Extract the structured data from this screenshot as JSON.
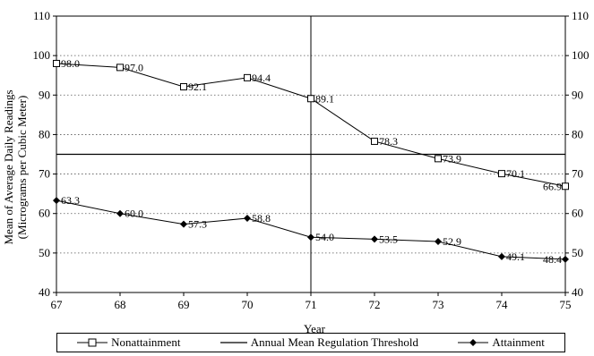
{
  "chart_data": {
    "type": "line",
    "x": [
      "67",
      "68",
      "69",
      "70",
      "71",
      "72",
      "73",
      "74",
      "75"
    ],
    "xlabel": "Year",
    "ylabel": "Mean of Average Daily Readings",
    "ylabel_units": "(Micrograms per Cubic Meter)",
    "ylim": [
      40,
      110
    ],
    "yticks": [
      "40",
      "50",
      "60",
      "70",
      "80",
      "90",
      "100",
      "110"
    ],
    "grid": "horizontal dotted",
    "vertical_marker_x": "71",
    "series": [
      {
        "name": "Nonattainment",
        "marker": "open-square",
        "color": "#000000",
        "values": [
          98.0,
          97.0,
          92.1,
          94.4,
          89.1,
          78.3,
          73.9,
          70.1,
          66.9
        ],
        "labels": [
          "98.0",
          "97.0",
          "92.1",
          "94.4",
          "89.1",
          "78.3",
          "73.9",
          "70.1",
          "66.9"
        ]
      },
      {
        "name": "Annual Mean Regulation Threshold",
        "marker": "none",
        "color": "#000000",
        "values": [
          75,
          75,
          75,
          75,
          75,
          75,
          75,
          75,
          75
        ]
      },
      {
        "name": "Attainment",
        "marker": "filled-diamond",
        "color": "#000000",
        "values": [
          63.3,
          60.0,
          57.3,
          58.8,
          54.0,
          53.5,
          52.9,
          49.1,
          48.4
        ],
        "labels": [
          "63.3",
          "60.0",
          "57.3",
          "58.8",
          "54.0",
          "53.5",
          "52.9",
          "49.1",
          "48.4"
        ]
      }
    ],
    "legend_position": "bottom"
  }
}
